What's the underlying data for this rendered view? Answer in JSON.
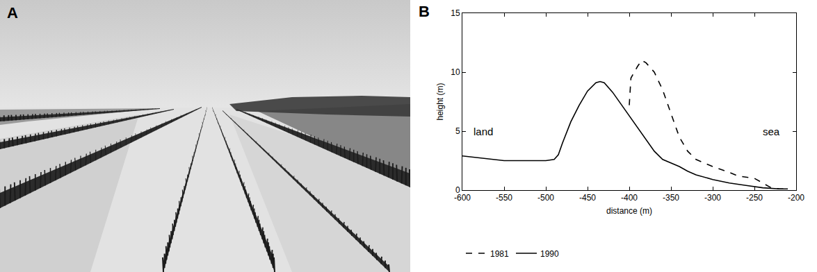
{
  "photo": {
    "panel_label": "A"
  },
  "chart_data": {
    "type": "line",
    "panel_label": "B",
    "xlabel": "distance (m)",
    "ylabel": "height (m)",
    "annotations": [
      {
        "text": "land",
        "x": -575,
        "y": 5
      },
      {
        "text": "sea",
        "x": -230,
        "y": 5
      }
    ],
    "xlim": [
      -600,
      -200
    ],
    "xticks": [
      -600,
      -550,
      -500,
      -450,
      -400,
      -350,
      -300,
      -250,
      -200
    ],
    "ylim": [
      0,
      15
    ],
    "yticks": [
      0,
      5,
      10,
      15
    ],
    "legend": "bottom left",
    "series": [
      {
        "name": "1981",
        "color": "#000000",
        "line_style": "dash",
        "x": [
          -400,
          -398,
          -390,
          -385,
          -380,
          -370,
          -360,
          -350,
          -340,
          -330,
          -320,
          -300,
          -280,
          -270,
          -260,
          -250,
          -240,
          -230,
          -220,
          -210
        ],
        "values": [
          7.2,
          9.5,
          10.5,
          11.0,
          10.8,
          10.0,
          8.5,
          6.5,
          4.5,
          3.3,
          2.6,
          2.0,
          1.5,
          1.2,
          1.1,
          1.0,
          0.6,
          0.2,
          0.1,
          0.1
        ]
      },
      {
        "name": "1990",
        "color": "#000000",
        "line_style": "solid",
        "x": [
          -600,
          -575,
          -550,
          -525,
          -500,
          -490,
          -485,
          -480,
          -470,
          -460,
          -450,
          -440,
          -435,
          -430,
          -420,
          -410,
          -400,
          -390,
          -380,
          -370,
          -360,
          -350,
          -340,
          -330,
          -320,
          -300,
          -280,
          -260,
          -240,
          -220,
          -210
        ],
        "values": [
          2.9,
          2.7,
          2.5,
          2.5,
          2.5,
          2.6,
          3.0,
          4.0,
          5.8,
          7.2,
          8.4,
          9.1,
          9.2,
          9.1,
          8.3,
          7.3,
          6.3,
          5.3,
          4.3,
          3.3,
          2.6,
          2.3,
          2.0,
          1.6,
          1.3,
          0.9,
          0.6,
          0.4,
          0.2,
          0.1,
          0.1
        ]
      }
    ]
  }
}
